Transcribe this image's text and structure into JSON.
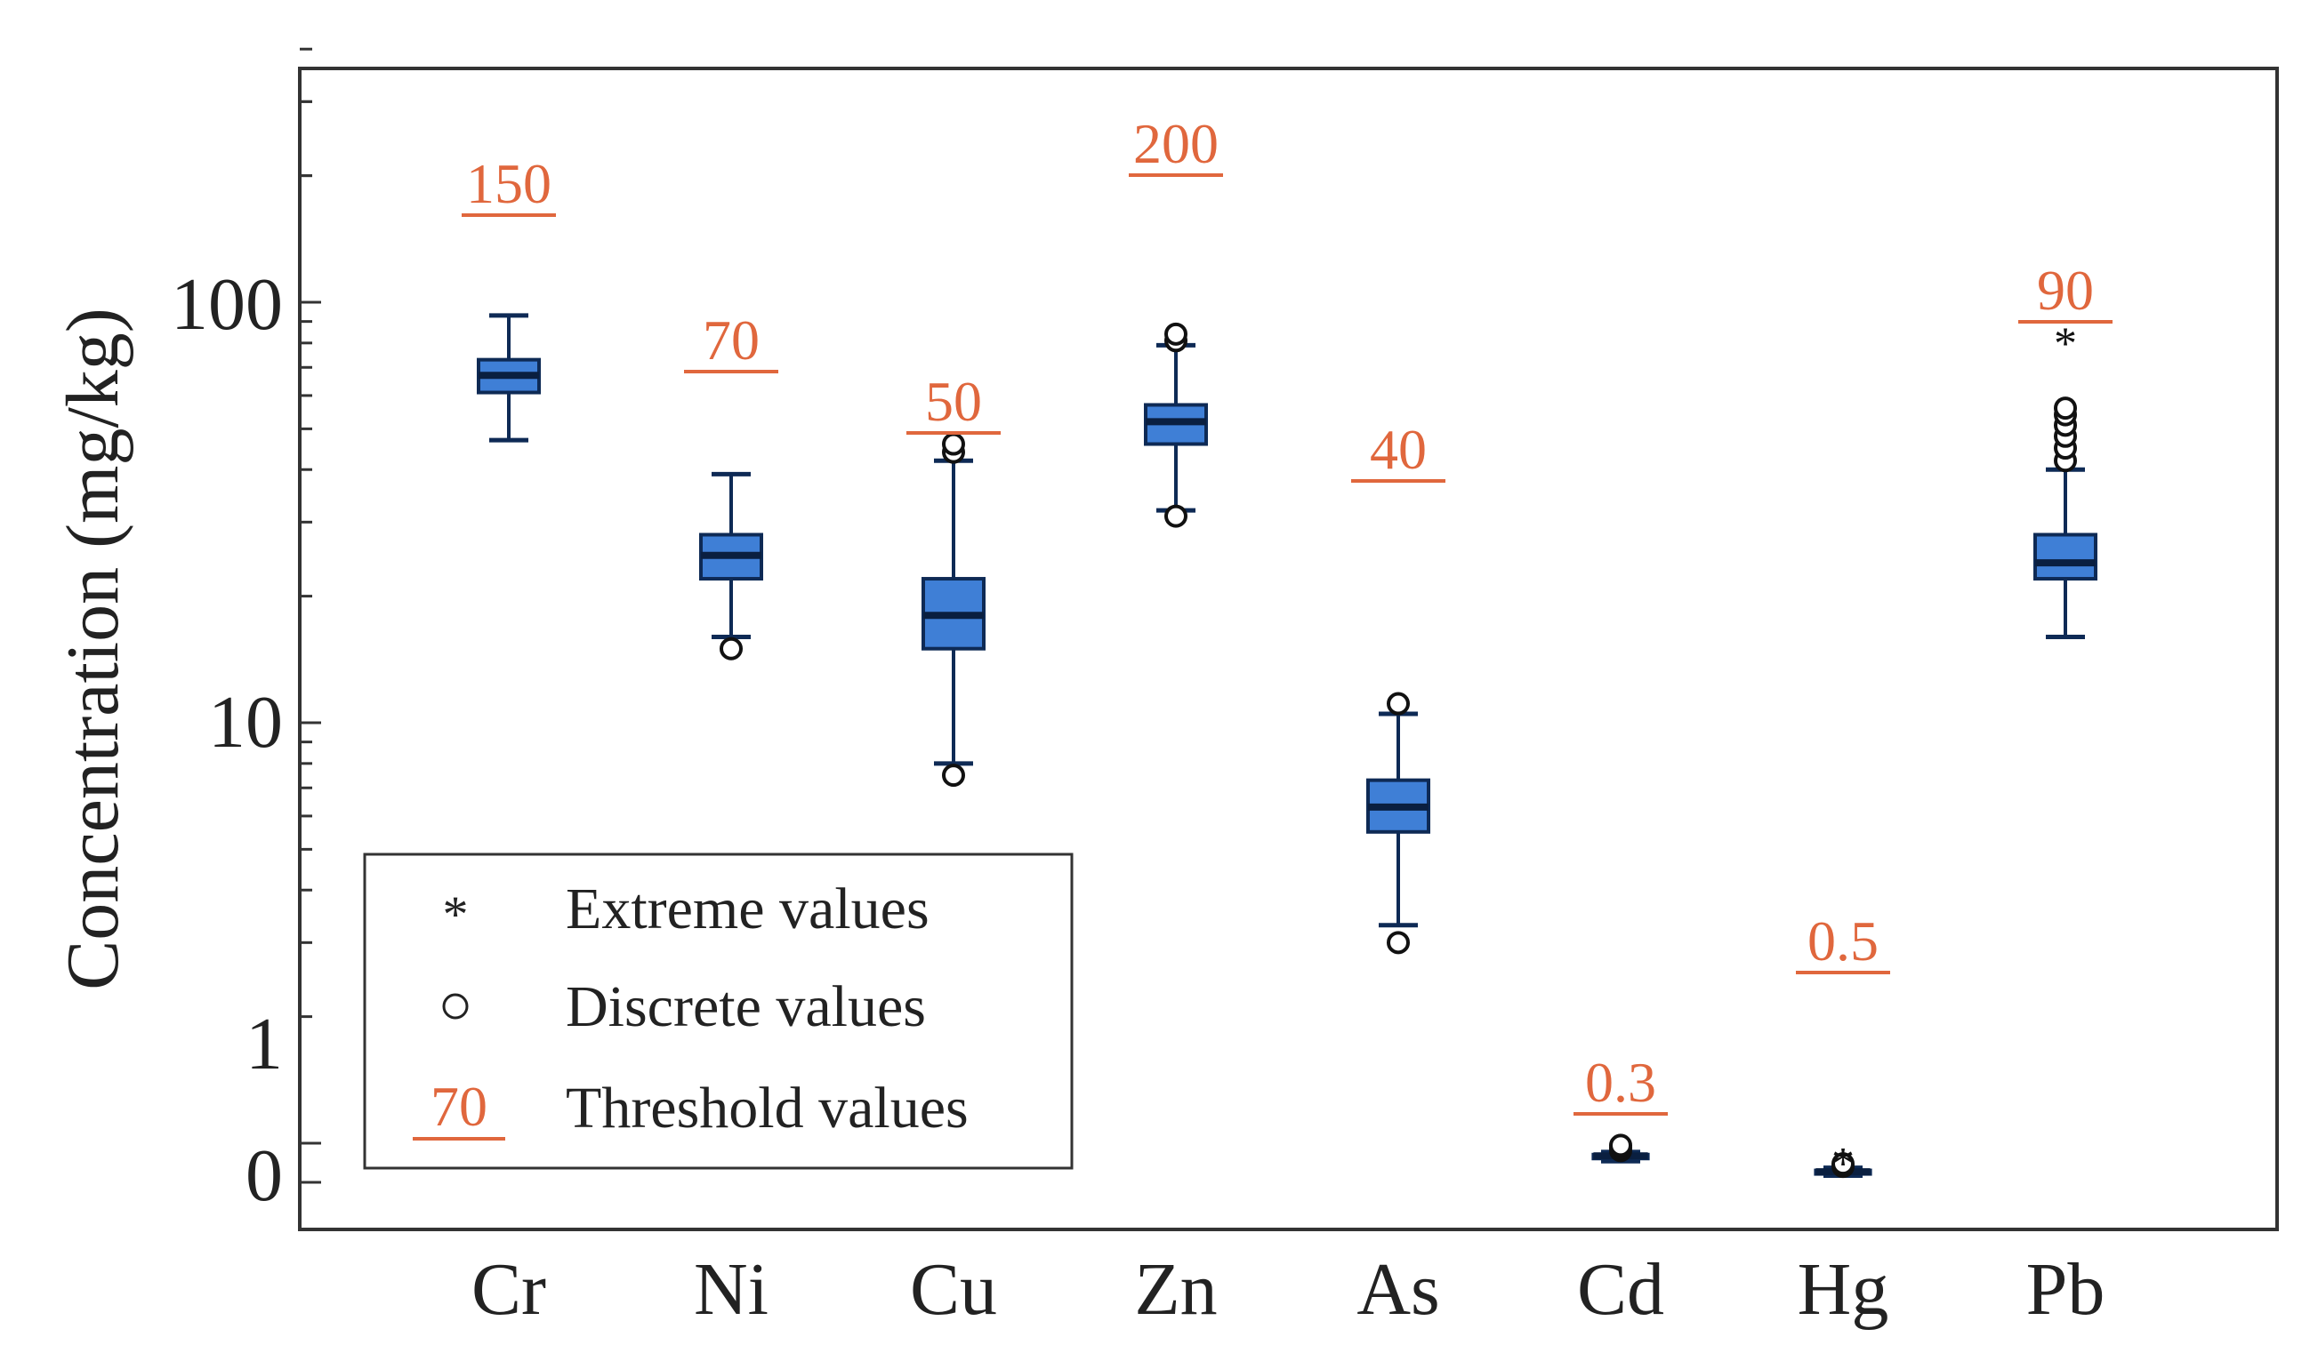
{
  "colors": {
    "box_fill": "#3f7fd6",
    "box_stroke": "#0e2a55",
    "threshold": "#e0673d",
    "axis": "#333333",
    "text": "#222222"
  },
  "chart_data": {
    "type": "box",
    "title": "",
    "xlabel": "",
    "ylabel": "Concentration (mg/kg)",
    "yscale": "log (broken; 0 shown at bottom)",
    "ylim": [
      0,
      400
    ],
    "ytick_labels": [
      "100",
      "10",
      "1",
      "0"
    ],
    "categories": [
      "Cr",
      "Ni",
      "Cu",
      "Zn",
      "As",
      "Cd",
      "Hg",
      "Pb"
    ],
    "series": [
      {
        "name": "Cr",
        "whisker_low": 47,
        "q1": 61,
        "median": 67,
        "q3": 73,
        "whisker_high": 93,
        "outliers": [],
        "extremes": [],
        "threshold": 150,
        "threshold_label": "150"
      },
      {
        "name": "Ni",
        "whisker_low": 16,
        "q1": 22,
        "median": 25,
        "q3": 28,
        "whisker_high": 39,
        "outliers": [
          15
        ],
        "extremes": [],
        "threshold": 70,
        "threshold_label": "70"
      },
      {
        "name": "Cu",
        "whisker_low": 8,
        "q1": 15,
        "median": 18,
        "q3": 22,
        "whisker_high": 42,
        "outliers": [
          7.5,
          44,
          46
        ],
        "extremes": [],
        "threshold": 50,
        "threshold_label": "50"
      },
      {
        "name": "Zn",
        "whisker_low": 32,
        "q1": 46,
        "median": 52,
        "q3": 57,
        "whisker_high": 79,
        "outliers": [
          31,
          81,
          84
        ],
        "extremes": [],
        "threshold": 200,
        "threshold_label": "200"
      },
      {
        "name": "As",
        "whisker_low": 3.3,
        "q1": 5.5,
        "median": 6.3,
        "q3": 7.3,
        "whisker_high": 10.5,
        "outliers": [
          3.0,
          11.1
        ],
        "extremes": [],
        "threshold": 40,
        "threshold_label": "40"
      },
      {
        "name": "Cd",
        "whisker_low": 0.13,
        "q1": 0.15,
        "median": 0.17,
        "q3": 0.18,
        "whisker_high": 0.2,
        "outliers": [
          0.21,
          0.23,
          0.25
        ],
        "extremes": [],
        "threshold": 0.3,
        "threshold_label": "0.3"
      },
      {
        "name": "Hg",
        "whisker_low": 0.02,
        "q1": 0.04,
        "median": 0.05,
        "q3": 0.06,
        "whisker_high": 0.08,
        "outliers": [
          0.09,
          0.11
        ],
        "extremes": [
          0.13
        ],
        "threshold": 0.5,
        "threshold_label": "0.5"
      },
      {
        "name": "Pb",
        "whisker_low": 16,
        "q1": 22,
        "median": 24,
        "q3": 28,
        "whisker_high": 40,
        "outliers": [
          42,
          45,
          48,
          51,
          54,
          56
        ],
        "extremes": [
          81
        ],
        "threshold": 90,
        "threshold_label": "90"
      }
    ],
    "legend": {
      "position": "bottom-left",
      "items": [
        {
          "symbol": "star",
          "symbol_text": "*",
          "label": "Extreme values"
        },
        {
          "symbol": "circle",
          "symbol_text": "",
          "label": "Discrete values"
        },
        {
          "symbol": "threshold",
          "symbol_text": "70",
          "label": "Threshold values"
        }
      ]
    }
  }
}
